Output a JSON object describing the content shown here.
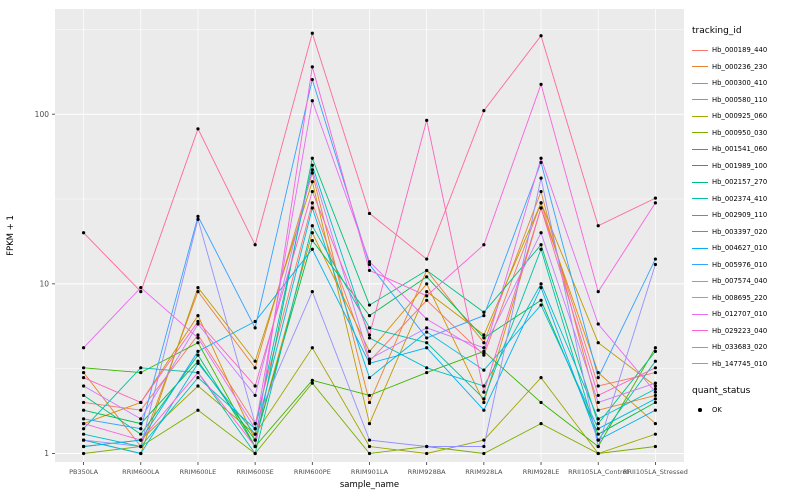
{
  "chart_data": {
    "type": "line",
    "title": "",
    "xlabel": "sample_name",
    "ylabel": "FPKM + 1",
    "grid": true,
    "panel_bg": "#EBEBEB",
    "grid_color": "#FFFFFF",
    "point_color": "#000000",
    "axis_text_color": "#4D4D4D",
    "y_scale": "log10",
    "y_ticks": [
      1,
      10,
      100
    ],
    "y_minor_ticks": [
      3.162,
      31.62,
      316.2
    ],
    "ylim_log10": [
      -0.05,
      2.62
    ],
    "legend_position": "right",
    "legend_title": "tracking_id",
    "quant_legend": {
      "title": "quant_status",
      "items": [
        "OK"
      ]
    },
    "categories": [
      "PB350LA",
      "RRIM600LA",
      "RRIM600LE",
      "RRIM600SE",
      "RRIM600PE",
      "RRIM901LA",
      "RRIM928BA",
      "RRIM928LA",
      "RRIM928LE",
      "RRII105LA_Control",
      "RRII105LA_Stressed"
    ],
    "series": [
      {
        "name": "Hb_000189_440",
        "color": "#F8766D",
        "values": [
          2.0,
          1.8,
          5.0,
          1.5,
          30,
          3.5,
          8.0,
          3.8,
          30,
          2.5,
          3.0
        ]
      },
      {
        "name": "Hb_000236_230",
        "color": "#EA8331",
        "values": [
          3.0,
          1.1,
          9.0,
          3.2,
          45,
          2.0,
          12,
          4.5,
          35,
          1.8,
          2.2
        ]
      },
      {
        "name": "Hb_000300_410",
        "color": "#D89000",
        "values": [
          1.5,
          2.0,
          6.5,
          1.2,
          20,
          4.0,
          10,
          2.0,
          28,
          3.0,
          1.5
        ]
      },
      {
        "name": "Hb_000580_110",
        "color": "#C09B00",
        "values": [
          1.2,
          1.0,
          9.5,
          3.5,
          40,
          1.5,
          9.0,
          5.0,
          30,
          4.5,
          2.5
        ]
      },
      {
        "name": "Hb_000925_060",
        "color": "#A3A500",
        "values": [
          1.1,
          1.2,
          2.5,
          1.3,
          4.2,
          1.1,
          1.0,
          1.2,
          2.8,
          1.0,
          1.3
        ]
      },
      {
        "name": "Hb_000950_030",
        "color": "#7CAE00",
        "values": [
          1.0,
          1.1,
          1.8,
          1.0,
          2.6,
          1.0,
          1.1,
          1.0,
          1.5,
          1.0,
          1.1
        ]
      },
      {
        "name": "Hb_001541_060",
        "color": "#39B600",
        "values": [
          3.2,
          3.0,
          4.5,
          1.1,
          2.7,
          2.2,
          3.0,
          4.0,
          2.0,
          1.1,
          4.2
        ]
      },
      {
        "name": "Hb_001989_100",
        "color": "#00BB4E",
        "values": [
          1.8,
          1.5,
          3.5,
          1.2,
          18,
          6.5,
          11,
          4.8,
          8.0,
          1.3,
          2.0
        ]
      },
      {
        "name": "Hb_002157_270",
        "color": "#00BF7D",
        "values": [
          2.2,
          1.3,
          3.8,
          1.1,
          55,
          7.5,
          12,
          6.8,
          17,
          1.5,
          4.0
        ]
      },
      {
        "name": "Hb_002374_410",
        "color": "#00C1A3",
        "values": [
          1.4,
          3.2,
          3.0,
          1.0,
          22,
          5.5,
          4.5,
          2.1,
          16,
          1.2,
          3.5
        ]
      },
      {
        "name": "Hb_002909_110",
        "color": "#00BFC4",
        "values": [
          1.3,
          1.1,
          2.8,
          1.4,
          50,
          4.8,
          3.2,
          2.5,
          10,
          1.6,
          2.4
        ]
      },
      {
        "name": "Hb_003397_020",
        "color": "#00BAE0",
        "values": [
          1.2,
          1.0,
          3.4,
          1.3,
          28,
          2.8,
          5.2,
          3.1,
          7.5,
          1.4,
          2.1
        ]
      },
      {
        "name": "Hb_004627_010",
        "color": "#00B0F6",
        "values": [
          1.1,
          1.2,
          4.0,
          6.0,
          16,
          3.4,
          4.2,
          1.8,
          9.5,
          1.2,
          1.8
        ]
      },
      {
        "name": "Hb_005976_010",
        "color": "#35A2FF",
        "values": [
          1.6,
          1.4,
          25,
          5.5,
          160,
          13,
          4.8,
          6.5,
          52,
          2.8,
          14
        ]
      },
      {
        "name": "Hb_007574_040",
        "color": "#9590FF",
        "values": [
          1.2,
          1.1,
          24,
          1.5,
          9.0,
          1.2,
          1.1,
          1.1,
          42,
          1.1,
          13
        ]
      },
      {
        "name": "Hb_008695_220",
        "color": "#C77CFF",
        "values": [
          2.5,
          1.6,
          5.8,
          2.2,
          47,
          3.6,
          5.5,
          4.2,
          20,
          2.0,
          2.6
        ]
      },
      {
        "name": "Hb_012707_010",
        "color": "#E76BF3",
        "values": [
          4.2,
          9.5,
          4.8,
          1.4,
          120,
          13.5,
          6.2,
          3.9,
          55,
          5.8,
          2.3
        ]
      },
      {
        "name": "Hb_029223_040",
        "color": "#FA62DB",
        "values": [
          1.5,
          1.2,
          3.0,
          1.1,
          190,
          12,
          8.5,
          17,
          150,
          9.0,
          30
        ]
      },
      {
        "name": "Hb_033683_020",
        "color": "#FF62BC",
        "values": [
          2.8,
          2.0,
          6.0,
          2.5,
          35,
          5.0,
          92,
          2.3,
          28,
          2.2,
          3.2
        ]
      },
      {
        "name": "Hb_147745_010",
        "color": "#FF6A98",
        "values": [
          20,
          9.0,
          82,
          17,
          300,
          26,
          14,
          105,
          290,
          22,
          32
        ]
      }
    ]
  }
}
